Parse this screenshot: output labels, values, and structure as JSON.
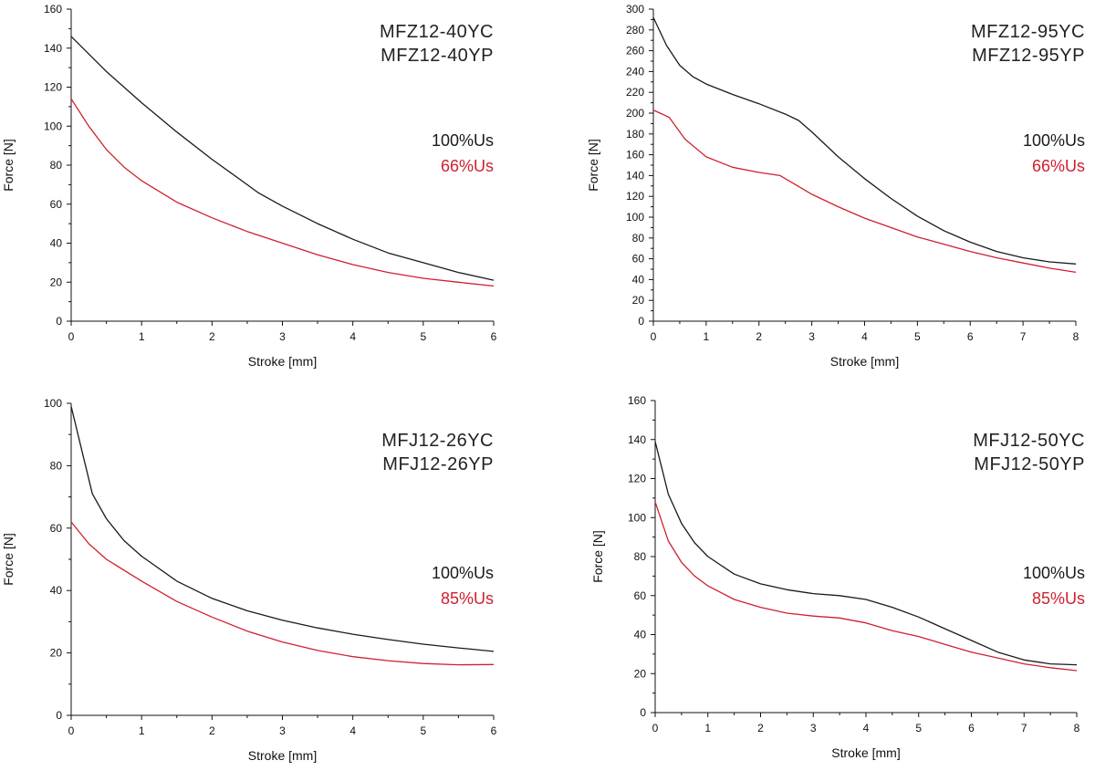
{
  "chart_data": [
    {
      "type": "line",
      "models": [
        "MFZ12-40YC",
        "MFZ12-40YP"
      ],
      "xlabel": "Stroke [mm]",
      "ylabel": "Force [N]",
      "xlim": [
        0,
        6
      ],
      "ylim": [
        0,
        160
      ],
      "xticks": [
        0,
        1,
        2,
        3,
        4,
        5,
        6
      ],
      "yticks": [
        0,
        20,
        40,
        60,
        80,
        100,
        120,
        140,
        160
      ],
      "series": [
        {
          "name": "100%Us",
          "color": "#1a1a1a",
          "points": [
            [
              0,
              146
            ],
            [
              0.5,
              128
            ],
            [
              1,
              112
            ],
            [
              1.5,
              97
            ],
            [
              2,
              83
            ],
            [
              2.5,
              70
            ],
            [
              2.65,
              66
            ],
            [
              3,
              59
            ],
            [
              3.5,
              50
            ],
            [
              4,
              42
            ],
            [
              4.5,
              35
            ],
            [
              5,
              30
            ],
            [
              5.5,
              25
            ],
            [
              6,
              21
            ]
          ]
        },
        {
          "name": "66%Us",
          "color": "#d0202e",
          "points": [
            [
              0,
              114
            ],
            [
              0.25,
              100
            ],
            [
              0.5,
              88
            ],
            [
              0.75,
              79
            ],
            [
              1,
              72
            ],
            [
              1.5,
              61
            ],
            [
              2,
              53
            ],
            [
              2.5,
              46
            ],
            [
              3,
              40
            ],
            [
              3.5,
              34
            ],
            [
              4,
              29
            ],
            [
              4.5,
              25
            ],
            [
              5,
              22
            ],
            [
              5.5,
              20
            ],
            [
              6,
              18
            ]
          ]
        }
      ]
    },
    {
      "type": "line",
      "models": [
        "MFZ12-95YC",
        "MFZ12-95YP"
      ],
      "xlabel": "Stroke [mm]",
      "ylabel": "Force [N]",
      "xlim": [
        0,
        8
      ],
      "ylim": [
        0,
        300
      ],
      "xticks": [
        0,
        1,
        2,
        3,
        4,
        5,
        6,
        7,
        8
      ],
      "yticks": [
        0,
        20,
        40,
        60,
        80,
        100,
        120,
        140,
        160,
        180,
        200,
        220,
        240,
        260,
        280,
        300
      ],
      "series": [
        {
          "name": "100%Us",
          "color": "#1a1a1a",
          "points": [
            [
              0,
              292
            ],
            [
              0.25,
              265
            ],
            [
              0.5,
              246
            ],
            [
              0.75,
              235
            ],
            [
              1,
              228
            ],
            [
              1.5,
              218
            ],
            [
              2,
              209
            ],
            [
              2.5,
              199
            ],
            [
              2.75,
              193
            ],
            [
              3,
              182
            ],
            [
              3.5,
              158
            ],
            [
              4,
              137
            ],
            [
              4.5,
              118
            ],
            [
              5,
              101
            ],
            [
              5.5,
              87
            ],
            [
              6,
              76
            ],
            [
              6.5,
              67
            ],
            [
              7,
              61
            ],
            [
              7.5,
              57
            ],
            [
              8,
              55
            ]
          ]
        },
        {
          "name": "66%Us",
          "color": "#d0202e",
          "points": [
            [
              0,
              203
            ],
            [
              0.3,
              196
            ],
            [
              0.6,
              175
            ],
            [
              1,
              158
            ],
            [
              1.5,
              148
            ],
            [
              2,
              143
            ],
            [
              2.4,
              140
            ],
            [
              2.8,
              128
            ],
            [
              3,
              122
            ],
            [
              3.5,
              110
            ],
            [
              4,
              99
            ],
            [
              4.5,
              90
            ],
            [
              5,
              81
            ],
            [
              5.5,
              74
            ],
            [
              6,
              67
            ],
            [
              6.5,
              61
            ],
            [
              7,
              56
            ],
            [
              7.5,
              51
            ],
            [
              8,
              47
            ]
          ]
        }
      ]
    },
    {
      "type": "line",
      "models": [
        "MFJ12-26YC",
        "MFJ12-26YP"
      ],
      "xlabel": "Stroke [mm]",
      "ylabel": "Force [N]",
      "xlim": [
        0,
        6
      ],
      "ylim": [
        0,
        100
      ],
      "xticks": [
        0,
        1,
        2,
        3,
        4,
        5,
        6
      ],
      "yticks": [
        0,
        20,
        40,
        60,
        80,
        100
      ],
      "series": [
        {
          "name": "100%Us",
          "color": "#1a1a1a",
          "points": [
            [
              0,
              99
            ],
            [
              0.15,
              85
            ],
            [
              0.3,
              71
            ],
            [
              0.5,
              63
            ],
            [
              0.75,
              56
            ],
            [
              1,
              51
            ],
            [
              1.5,
              43
            ],
            [
              2,
              37.5
            ],
            [
              2.5,
              33.5
            ],
            [
              3,
              30.5
            ],
            [
              3.5,
              28
            ],
            [
              4,
              26
            ],
            [
              4.5,
              24.3
            ],
            [
              5,
              22.8
            ],
            [
              5.5,
              21.6
            ],
            [
              6,
              20.5
            ]
          ]
        },
        {
          "name": "85%Us",
          "color": "#d0202e",
          "points": [
            [
              0,
              62
            ],
            [
              0.25,
              55
            ],
            [
              0.5,
              50
            ],
            [
              1,
              43
            ],
            [
              1.5,
              36.5
            ],
            [
              2,
              31.5
            ],
            [
              2.5,
              27
            ],
            [
              3,
              23.5
            ],
            [
              3.5,
              20.8
            ],
            [
              4,
              18.8
            ],
            [
              4.5,
              17.5
            ],
            [
              5,
              16.6
            ],
            [
              5.5,
              16.2
            ],
            [
              6,
              16.3
            ]
          ]
        }
      ]
    },
    {
      "type": "line",
      "models": [
        "MFJ12-50YC",
        "MFJ12-50YP"
      ],
      "xlabel": "Stroke [mm]",
      "ylabel": "Force [N]",
      "xlim": [
        0,
        8
      ],
      "ylim": [
        0,
        160
      ],
      "xticks": [
        0,
        1,
        2,
        3,
        4,
        5,
        6,
        7,
        8
      ],
      "yticks": [
        0,
        20,
        40,
        60,
        80,
        100,
        120,
        140,
        160
      ],
      "series": [
        {
          "name": "100%Us",
          "color": "#1a1a1a",
          "points": [
            [
              0,
              139
            ],
            [
              0.25,
              112
            ],
            [
              0.5,
              97
            ],
            [
              0.75,
              87
            ],
            [
              1,
              80
            ],
            [
              1.5,
              71
            ],
            [
              2,
              66
            ],
            [
              2.5,
              63
            ],
            [
              3,
              61
            ],
            [
              3.5,
              60
            ],
            [
              4,
              58
            ],
            [
              4.5,
              54
            ],
            [
              5,
              49
            ],
            [
              5.5,
              43
            ],
            [
              6,
              37
            ],
            [
              6.5,
              31
            ],
            [
              7,
              27
            ],
            [
              7.5,
              25
            ],
            [
              8,
              24.5
            ]
          ]
        },
        {
          "name": "85%Us",
          "color": "#d0202e",
          "points": [
            [
              0,
              108
            ],
            [
              0.25,
              88
            ],
            [
              0.5,
              77
            ],
            [
              0.75,
              70
            ],
            [
              1,
              65
            ],
            [
              1.5,
              58
            ],
            [
              2,
              54
            ],
            [
              2.5,
              51
            ],
            [
              3,
              49.5
            ],
            [
              3.5,
              48.5
            ],
            [
              4,
              46
            ],
            [
              4.5,
              42
            ],
            [
              5,
              39
            ],
            [
              5.5,
              35
            ],
            [
              6,
              31
            ],
            [
              6.5,
              28
            ],
            [
              7,
              25
            ],
            [
              7.5,
              23
            ],
            [
              8,
              21.5
            ]
          ]
        }
      ]
    }
  ]
}
